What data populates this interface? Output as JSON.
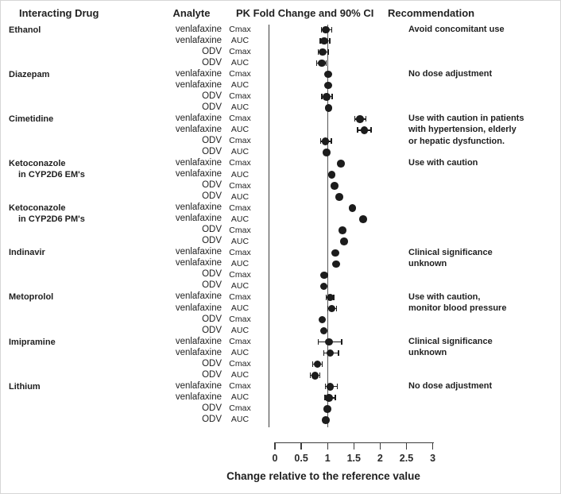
{
  "header": {
    "interacting_drug": "Interacting Drug",
    "analyte": "Analyte",
    "pk_fold_change": "PK Fold Change and 90% CI",
    "recommendation": "Recommendation"
  },
  "axis": {
    "label": "Change relative to the reference value",
    "tick_labels": [
      "0",
      "0.5",
      "1",
      "1.5",
      "2",
      "2.5",
      "3"
    ]
  },
  "chart_data": {
    "type": "scatter",
    "subtype": "forest-plot-dot-and-90ci",
    "title": "PK Fold Change and 90% CI",
    "xlabel": "Change relative to the reference value",
    "xlim": [
      0,
      3
    ],
    "x_ticks": [
      0,
      0.5,
      1,
      1.5,
      2,
      2.5,
      3
    ],
    "reference_line": 1,
    "legend": "dots are point estimates of PK fold change, whiskers are 90% confidence intervals",
    "groups": [
      {
        "drug_lines": [
          "Ethanol"
        ],
        "recommendation_lines": [
          "Avoid concomitant use"
        ],
        "rows": [
          {
            "analyte": "venlafaxine",
            "metric": "Cmax",
            "value": 0.97,
            "ci": [
              0.88,
              1.08
            ]
          },
          {
            "analyte": "venlafaxine",
            "metric": "AUC",
            "value": 0.94,
            "ci": [
              0.86,
              1.04
            ]
          },
          {
            "analyte": "ODV",
            "metric": "Cmax",
            "value": 0.91,
            "ci": [
              0.82,
              1.01
            ]
          },
          {
            "analyte": "ODV",
            "metric": "AUC",
            "value": 0.89,
            "ci": [
              0.79,
              0.97
            ]
          }
        ]
      },
      {
        "drug_lines": [
          "Diazepam"
        ],
        "recommendation_lines": [
          "No dose adjustment"
        ],
        "rows": [
          {
            "analyte": "venlafaxine",
            "metric": "Cmax",
            "value": 1.01,
            "ci": null
          },
          {
            "analyte": "venlafaxine",
            "metric": "AUC",
            "value": 1.01,
            "ci": null
          },
          {
            "analyte": "ODV",
            "metric": "Cmax",
            "value": 0.98,
            "ci": [
              0.89,
              1.09
            ]
          },
          {
            "analyte": "ODV",
            "metric": "AUC",
            "value": 1.02,
            "ci": null
          }
        ]
      },
      {
        "drug_lines": [
          "Cimetidine"
        ],
        "recommendation_lines": [
          "Use with caution in patients",
          "with hypertension, elderly",
          "or hepatic dysfunction."
        ],
        "rows": [
          {
            "analyte": "venlafaxine",
            "metric": "Cmax",
            "value": 1.62,
            "ci": [
              1.52,
              1.73
            ]
          },
          {
            "analyte": "venlafaxine",
            "metric": "AUC",
            "value": 1.7,
            "ci": [
              1.57,
              1.83
            ]
          },
          {
            "analyte": "ODV",
            "metric": "Cmax",
            "value": 0.96,
            "ci": [
              0.87,
              1.07
            ]
          },
          {
            "analyte": "ODV",
            "metric": "AUC",
            "value": 0.98,
            "ci": null
          }
        ]
      },
      {
        "drug_lines": [
          "Ketoconazole",
          "in CYP2D6 EM's"
        ],
        "recommendation_lines": [
          "Use with caution"
        ],
        "rows": [
          {
            "analyte": "venlafaxine",
            "metric": "Cmax",
            "value": 1.25,
            "ci": null
          },
          {
            "analyte": "venlafaxine",
            "metric": "AUC",
            "value": 1.08,
            "ci": null
          },
          {
            "analyte": "ODV",
            "metric": "Cmax",
            "value": 1.13,
            "ci": null
          },
          {
            "analyte": "ODV",
            "metric": "AUC",
            "value": 1.22,
            "ci": null
          }
        ]
      },
      {
        "drug_lines": [
          "Ketoconazole",
          "in CYP2D6 PM's"
        ],
        "recommendation_lines": [],
        "rows": [
          {
            "analyte": "venlafaxine",
            "metric": "Cmax",
            "value": 1.47,
            "ci": null
          },
          {
            "analyte": "venlafaxine",
            "metric": "AUC",
            "value": 1.68,
            "ci": null
          },
          {
            "analyte": "ODV",
            "metric": "Cmax",
            "value": 1.28,
            "ci": null
          },
          {
            "analyte": "ODV",
            "metric": "AUC",
            "value": 1.31,
            "ci": null
          }
        ]
      },
      {
        "drug_lines": [
          "Indinavir"
        ],
        "recommendation_lines": [
          "Clinical significance",
          "unknown"
        ],
        "rows": [
          {
            "analyte": "venlafaxine",
            "metric": "Cmax",
            "value": 1.15,
            "ci": null
          },
          {
            "analyte": "venlafaxine",
            "metric": "AUC",
            "value": 1.16,
            "ci": null
          },
          {
            "analyte": "ODV",
            "metric": "Cmax",
            "value": 0.94,
            "ci": null
          },
          {
            "analyte": "ODV",
            "metric": "AUC",
            "value": 0.93,
            "ci": null
          }
        ]
      },
      {
        "drug_lines": [
          "Metoprolol"
        ],
        "recommendation_lines": [
          "Use with caution,",
          "monitor blood pressure"
        ],
        "rows": [
          {
            "analyte": "venlafaxine",
            "metric": "Cmax",
            "value": 1.05,
            "ci": [
              0.97,
              1.12
            ]
          },
          {
            "analyte": "venlafaxine",
            "metric": "AUC",
            "value": 1.08,
            "ci": [
              1.0,
              1.17
            ]
          },
          {
            "analyte": "ODV",
            "metric": "Cmax",
            "value": 0.9,
            "ci": null
          },
          {
            "analyte": "ODV",
            "metric": "AUC",
            "value": 0.93,
            "ci": null
          }
        ]
      },
      {
        "drug_lines": [
          "Imipramine"
        ],
        "recommendation_lines": [
          "Clinical significance",
          "unknown"
        ],
        "rows": [
          {
            "analyte": "venlafaxine",
            "metric": "Cmax",
            "value": 1.03,
            "ci": [
              0.82,
              1.27
            ]
          },
          {
            "analyte": "venlafaxine",
            "metric": "AUC",
            "value": 1.05,
            "ci": [
              0.93,
              1.21
            ]
          },
          {
            "analyte": "ODV",
            "metric": "Cmax",
            "value": 0.81,
            "ci": [
              0.72,
              0.9
            ]
          },
          {
            "analyte": "ODV",
            "metric": "AUC",
            "value": 0.76,
            "ci": [
              0.67,
              0.85
            ]
          }
        ]
      },
      {
        "drug_lines": [
          "Lithium"
        ],
        "recommendation_lines": [
          "No dose adjustment"
        ],
        "rows": [
          {
            "analyte": "venlafaxine",
            "metric": "Cmax",
            "value": 1.05,
            "ci": [
              0.96,
              1.19
            ]
          },
          {
            "analyte": "venlafaxine",
            "metric": "AUC",
            "value": 1.03,
            "ci": [
              0.95,
              1.15
            ]
          },
          {
            "analyte": "ODV",
            "metric": "Cmax",
            "value": 1.0,
            "ci": null
          },
          {
            "analyte": "ODV",
            "metric": "AUC",
            "value": 0.97,
            "ci": null
          }
        ]
      }
    ]
  }
}
